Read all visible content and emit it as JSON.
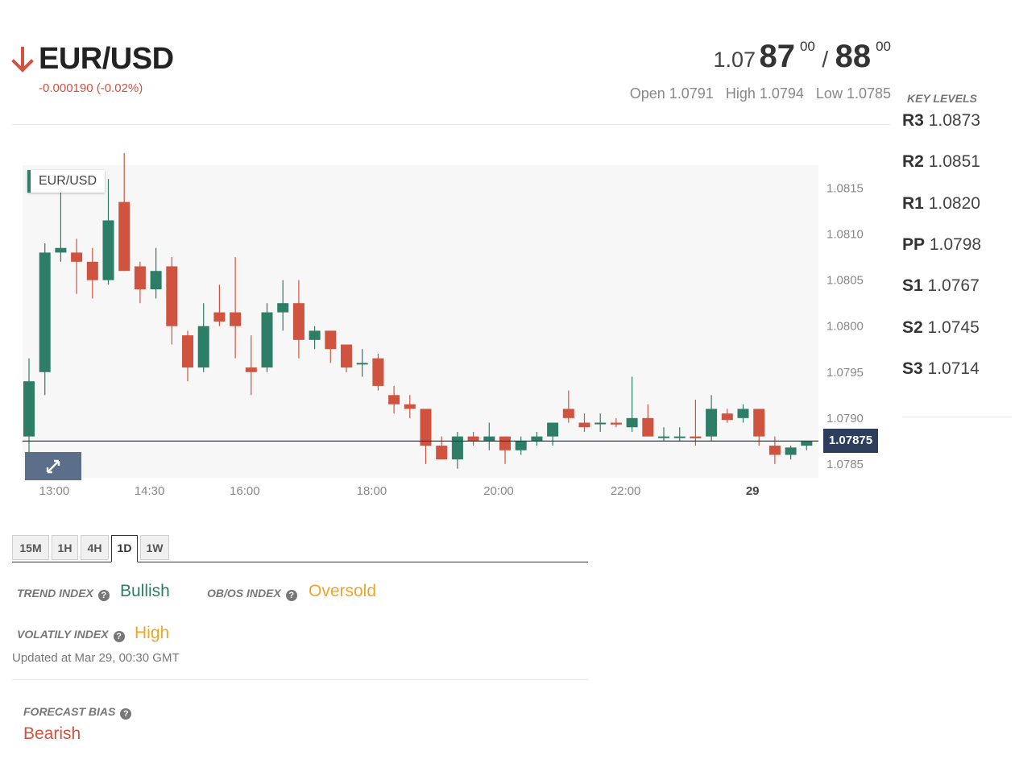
{
  "header": {
    "pair": "EUR/USD",
    "direction_icon": "arrow-down-icon",
    "change": "-0.000190 (-0.02%)",
    "bid": {
      "prefix": "1.07",
      "main": "87",
      "pip": "00"
    },
    "ask": {
      "main": "88",
      "pip": "00"
    },
    "separator": "/",
    "open": "Open 1.0791",
    "high": "High 1.0794",
    "low": "Low 1.0785"
  },
  "key_levels": {
    "title": "KEY LEVELS",
    "items": [
      {
        "name": "R3",
        "value": "1.0873"
      },
      {
        "name": "R2",
        "value": "1.0851"
      },
      {
        "name": "R1",
        "value": "1.0820"
      },
      {
        "name": "PP",
        "value": "1.0798"
      },
      {
        "name": "S1",
        "value": "1.0767"
      },
      {
        "name": "S2",
        "value": "1.0745"
      },
      {
        "name": "S3",
        "value": "1.0714"
      }
    ]
  },
  "chart": {
    "legend": "EUR/USD",
    "current_price": "1.07875",
    "expand_icon": "expand-icon"
  },
  "chart_data": {
    "type": "candlestick",
    "interval_minutes": 15,
    "ylim": [
      1.0783,
      1.0819
    ],
    "yticks": [
      "1.0815",
      "1.0810",
      "1.0805",
      "1.0800",
      "1.0795",
      "1.0790",
      "1.0785"
    ],
    "xticks": [
      {
        "label": "13:00",
        "index": 2
      },
      {
        "label": "14:30",
        "index": 8
      },
      {
        "label": "16:00",
        "index": 14
      },
      {
        "label": "18:00",
        "index": 22
      },
      {
        "label": "20:00",
        "index": 30
      },
      {
        "label": "22:00",
        "index": 38
      },
      {
        "label": "29",
        "index": 46,
        "bold": true
      }
    ],
    "current_price": 1.07875,
    "up_color": "#2e7d67",
    "down_color": "#d0533f",
    "candles": [
      {
        "o": 1.0788,
        "h": 1.07965,
        "l": 1.0786,
        "c": 1.0794
      },
      {
        "o": 1.0795,
        "h": 1.0809,
        "l": 1.07925,
        "c": 1.0808
      },
      {
        "o": 1.0808,
        "h": 1.0816,
        "l": 1.0807,
        "c": 1.08085
      },
      {
        "o": 1.0808,
        "h": 1.08095,
        "l": 1.08035,
        "c": 1.0807
      },
      {
        "o": 1.0807,
        "h": 1.08085,
        "l": 1.0803,
        "c": 1.0805
      },
      {
        "o": 1.0805,
        "h": 1.0816,
        "l": 1.08045,
        "c": 1.08115
      },
      {
        "o": 1.08135,
        "h": 1.0819,
        "l": 1.0806,
        "c": 1.0806
      },
      {
        "o": 1.08065,
        "h": 1.0807,
        "l": 1.08025,
        "c": 1.0804
      },
      {
        "o": 1.0804,
        "h": 1.08085,
        "l": 1.0803,
        "c": 1.0806
      },
      {
        "o": 1.08065,
        "h": 1.08075,
        "l": 1.0798,
        "c": 1.08
      },
      {
        "o": 1.0799,
        "h": 1.07995,
        "l": 1.0794,
        "c": 1.07955
      },
      {
        "o": 1.07955,
        "h": 1.08025,
        "l": 1.0795,
        "c": 1.08
      },
      {
        "o": 1.08015,
        "h": 1.08045,
        "l": 1.08,
        "c": 1.08005
      },
      {
        "o": 1.08015,
        "h": 1.08075,
        "l": 1.07965,
        "c": 1.08
      },
      {
        "o": 1.07955,
        "h": 1.0799,
        "l": 1.07925,
        "c": 1.0795
      },
      {
        "o": 1.07955,
        "h": 1.08025,
        "l": 1.0795,
        "c": 1.08015
      },
      {
        "o": 1.08015,
        "h": 1.0805,
        "l": 1.07995,
        "c": 1.08025
      },
      {
        "o": 1.08025,
        "h": 1.0805,
        "l": 1.07965,
        "c": 1.07985
      },
      {
        "o": 1.07985,
        "h": 1.08,
        "l": 1.07975,
        "c": 1.07995
      },
      {
        "o": 1.07995,
        "h": 1.07995,
        "l": 1.0796,
        "c": 1.07975
      },
      {
        "o": 1.0798,
        "h": 1.0798,
        "l": 1.0795,
        "c": 1.07955
      },
      {
        "o": 1.0796,
        "h": 1.07975,
        "l": 1.07945,
        "c": 1.0796
      },
      {
        "o": 1.07965,
        "h": 1.0797,
        "l": 1.0793,
        "c": 1.07935
      },
      {
        "o": 1.07925,
        "h": 1.07935,
        "l": 1.07905,
        "c": 1.07915
      },
      {
        "o": 1.07915,
        "h": 1.07925,
        "l": 1.079,
        "c": 1.0791
      },
      {
        "o": 1.0791,
        "h": 1.0791,
        "l": 1.0785,
        "c": 1.0787
      },
      {
        "o": 1.0787,
        "h": 1.0788,
        "l": 1.07855,
        "c": 1.07855
      },
      {
        "o": 1.07855,
        "h": 1.07885,
        "l": 1.07845,
        "c": 1.0788
      },
      {
        "o": 1.0788,
        "h": 1.07885,
        "l": 1.0787,
        "c": 1.07875
      },
      {
        "o": 1.07875,
        "h": 1.07895,
        "l": 1.07865,
        "c": 1.0788
      },
      {
        "o": 1.0788,
        "h": 1.0788,
        "l": 1.0785,
        "c": 1.07865
      },
      {
        "o": 1.07865,
        "h": 1.0788,
        "l": 1.0786,
        "c": 1.07875
      },
      {
        "o": 1.07875,
        "h": 1.07885,
        "l": 1.0787,
        "c": 1.0788
      },
      {
        "o": 1.0788,
        "h": 1.07895,
        "l": 1.0787,
        "c": 1.07895
      },
      {
        "o": 1.0791,
        "h": 1.0793,
        "l": 1.07895,
        "c": 1.079
      },
      {
        "o": 1.07895,
        "h": 1.07905,
        "l": 1.07885,
        "c": 1.0789
      },
      {
        "o": 1.07895,
        "h": 1.07905,
        "l": 1.07885,
        "c": 1.07895
      },
      {
        "o": 1.07895,
        "h": 1.079,
        "l": 1.0789,
        "c": 1.07893
      },
      {
        "o": 1.0789,
        "h": 1.07945,
        "l": 1.07885,
        "c": 1.079
      },
      {
        "o": 1.079,
        "h": 1.07915,
        "l": 1.0788,
        "c": 1.0788
      },
      {
        "o": 1.0788,
        "h": 1.0789,
        "l": 1.07875,
        "c": 1.0788
      },
      {
        "o": 1.0788,
        "h": 1.0789,
        "l": 1.07875,
        "c": 1.0788
      },
      {
        "o": 1.0788,
        "h": 1.0792,
        "l": 1.0787,
        "c": 1.07878
      },
      {
        "o": 1.0788,
        "h": 1.07925,
        "l": 1.07875,
        "c": 1.0791
      },
      {
        "o": 1.07905,
        "h": 1.0791,
        "l": 1.07895,
        "c": 1.07898
      },
      {
        "o": 1.079,
        "h": 1.07915,
        "l": 1.07895,
        "c": 1.0791
      },
      {
        "o": 1.0791,
        "h": 1.0791,
        "l": 1.0787,
        "c": 1.0788
      },
      {
        "o": 1.0787,
        "h": 1.0788,
        "l": 1.0785,
        "c": 1.0786
      },
      {
        "o": 1.0786,
        "h": 1.0787,
        "l": 1.07855,
        "c": 1.07868
      },
      {
        "o": 1.0787,
        "h": 1.07875,
        "l": 1.07865,
        "c": 1.07875
      }
    ]
  },
  "tabs": [
    {
      "label": "15M",
      "active": false
    },
    {
      "label": "1H",
      "active": false
    },
    {
      "label": "4H",
      "active": false
    },
    {
      "label": "1D",
      "active": true
    },
    {
      "label": "1W",
      "active": false
    }
  ],
  "indices": {
    "trend_label": "TREND INDEX",
    "trend_value": "Bullish",
    "obos_label": "OB/OS INDEX",
    "obos_value": "Oversold",
    "volatility_label": "VOLATILY INDEX",
    "volatility_value": "High",
    "updated": "Updated at Mar 29, 00:30 GMT",
    "help_icon": "help-icon",
    "help_glyph": "?"
  },
  "forecast": {
    "label": "FORECAST BIAS",
    "value": "Bearish"
  },
  "colors": {
    "bullish": "#2e7d67",
    "bearish": "#d0533f",
    "warning": "#eea626",
    "price_tag": "#2c3e5c"
  }
}
